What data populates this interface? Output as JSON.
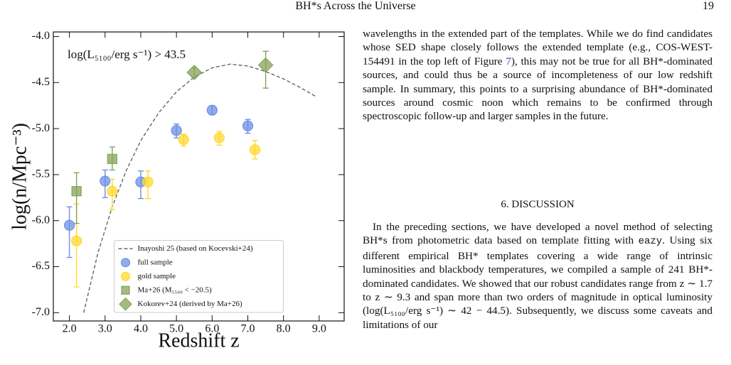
{
  "header": {
    "title": "BH*s Across the Universe",
    "page": "19"
  },
  "chart_data": {
    "type": "scatter",
    "xlabel": "Redshift z",
    "ylabel": "log(n/Mpc⁻³)",
    "annotation": "log(L₅₁₀₀/erg s⁻¹) > 43.5",
    "xlim": [
      1.55,
      9.7
    ],
    "ylim": [
      -7.09,
      -3.95
    ],
    "xticks": [
      {
        "value": 2,
        "label": "2.0"
      },
      {
        "value": 3,
        "label": "3.0"
      },
      {
        "value": 4,
        "label": "4.0"
      },
      {
        "value": 5,
        "label": "5.0"
      },
      {
        "value": 6,
        "label": "6.0"
      },
      {
        "value": 7,
        "label": "7.0"
      },
      {
        "value": 8,
        "label": "8.0"
      },
      {
        "value": 9,
        "label": "9.0"
      }
    ],
    "yticks": [
      {
        "value": -7,
        "label": "-7.0"
      },
      -6.5,
      {
        "value": -6,
        "label": "-6.0"
      },
      -5.5,
      {
        "value": -5,
        "label": "-5.0"
      },
      -4.5,
      {
        "value": -4,
        "label": "-4.0"
      }
    ],
    "legend": "lower center",
    "series": [
      {
        "name": "Inayoshi 25 (based on Kocevski+24)",
        "type": "line",
        "style": "dashed",
        "color": "#666666",
        "x": [
          2.4,
          2.8,
          3.2,
          3.6,
          4.0,
          4.5,
          5.0,
          5.5,
          6.0,
          6.5,
          7.0,
          7.5,
          8.0,
          8.5,
          8.9
        ],
        "values": [
          -7.0,
          -6.35,
          -5.85,
          -5.45,
          -5.13,
          -4.83,
          -4.6,
          -4.44,
          -4.34,
          -4.3,
          -4.32,
          -4.38,
          -4.46,
          -4.56,
          -4.65
        ]
      },
      {
        "name": "full sample",
        "marker": "circle",
        "color": "#6e8fe6",
        "x": [
          2.0,
          3.0,
          4.0,
          5.0,
          6.0,
          7.0
        ],
        "values": [
          -6.05,
          -5.57,
          -5.58,
          -5.02,
          -4.8,
          -4.97
        ],
        "yerr_lower": [
          0.35,
          0.18,
          0.18,
          0.08,
          0.05,
          0.08
        ],
        "yerr_upper": [
          0.2,
          0.12,
          0.12,
          0.07,
          0.05,
          0.07
        ]
      },
      {
        "name": "gold sample",
        "marker": "circle",
        "color": "#ffd92f",
        "x": [
          2.2,
          3.2,
          4.2,
          5.2,
          6.2,
          7.2
        ],
        "values": [
          -6.22,
          -5.68,
          -5.58,
          -5.12,
          -5.1,
          -5.23
        ],
        "yerr_lower": [
          0.5,
          0.2,
          0.18,
          0.07,
          0.08,
          0.1
        ],
        "yerr_upper": [
          0.4,
          0.13,
          0.12,
          0.06,
          0.07,
          0.1
        ]
      },
      {
        "name": "Ma+26 (M₅₅₀₀ < −20.5)",
        "marker": "square",
        "color": "#86a35a",
        "x": [
          2.2,
          3.2
        ],
        "values": [
          -5.68,
          -5.33
        ],
        "yerr_lower": [
          0.35,
          0.12
        ],
        "yerr_upper": [
          0.2,
          0.13
        ]
      },
      {
        "name": "Kokorev+24 (derived by Ma+26)",
        "marker": "diamond",
        "color": "#86a35a",
        "x": [
          5.5,
          7.5
        ],
        "values": [
          -4.39,
          -4.31
        ],
        "yerr_lower": [
          0.05,
          0.25
        ],
        "yerr_upper": [
          0.05,
          0.15
        ]
      }
    ]
  },
  "body": {
    "paragraph_1": [
      "wavelengths in the extended part of the templates. While we do find candidates whose SED shape closely follows the extended template (e.g., COS-WEST-154491 in the top left of Figure ",
      "7",
      "), this may not be true for all BH*-dominated sources, and could thus be a source of incompleteness of our low redshift sample. In summary, this points to a surprising abundance of BH*-dominated sources around cosmic noon which remains to be confirmed through spectroscopic follow-up and larger samples in the future."
    ],
    "section_heading": "6. DISCUSSION",
    "paragraph_2": [
      "In the preceding sections, we have developed a novel method of selecting BH*s from photometric data based on template fitting with ",
      "eazy",
      ". Using six different empirical BH* templates covering a wide range of intrinsic luminosities and blackbody temperatures, we compiled a sample of 241 BH*-dominated candidates. We showed that our robust candidates range from z ∼ 1.7 to z ∼ 9.3 and span more than two orders of magnitude in optical luminosity (log(L₅₁₀₀/erg s⁻¹) ∼ 42 − 44.5). Subsequently, we discuss some caveats and limitations of our"
    ]
  }
}
